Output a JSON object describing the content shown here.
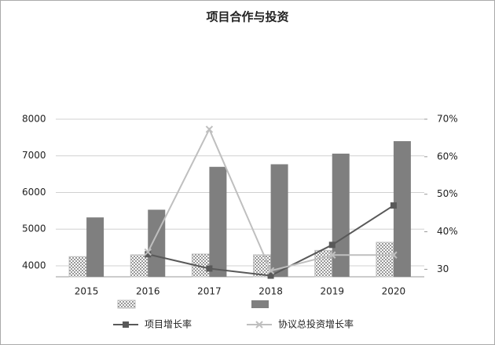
{
  "chart_data": {
    "type": "bar",
    "title": "项目合作与投资",
    "categories": [
      "2015",
      "2016",
      "2017",
      "2018",
      "2019",
      "2020"
    ],
    "ylim": [
      3700,
      8000
    ],
    "yticks": [
      4000,
      5000,
      6000,
      7000,
      8000
    ],
    "y2lim": [
      28,
      70
    ],
    "y2ticks": [
      {
        "value": 30,
        "label": "30"
      },
      {
        "value": 40,
        "label": "40%"
      },
      {
        "value": 50,
        "label": "50%"
      },
      {
        "value": 60,
        "label": "60%"
      },
      {
        "value": 70,
        "label": "70%"
      }
    ],
    "grid": true,
    "series": [
      {
        "type": "bar",
        "color": "#bdbdbd",
        "pattern": "dots",
        "values": [
          4250,
          4300,
          4320,
          4300,
          4420,
          4640
        ]
      },
      {
        "type": "bar",
        "color": "#7f7f7f",
        "values": [
          5320,
          5530,
          6700,
          6770,
          7060,
          7400
        ]
      },
      {
        "type": "line",
        "name": "项目增长率",
        "color": "#595959",
        "marker": "square",
        "axis": "y2",
        "values": [
          null,
          34,
          30.2,
          28.3,
          36.5,
          47
        ]
      },
      {
        "type": "line",
        "name": "协议总投资增长率",
        "color": "#bfbfbf",
        "marker": "x",
        "axis": "y2",
        "values": [
          null,
          34.6,
          67.3,
          29.6,
          33.8,
          33.8
        ]
      }
    ]
  }
}
